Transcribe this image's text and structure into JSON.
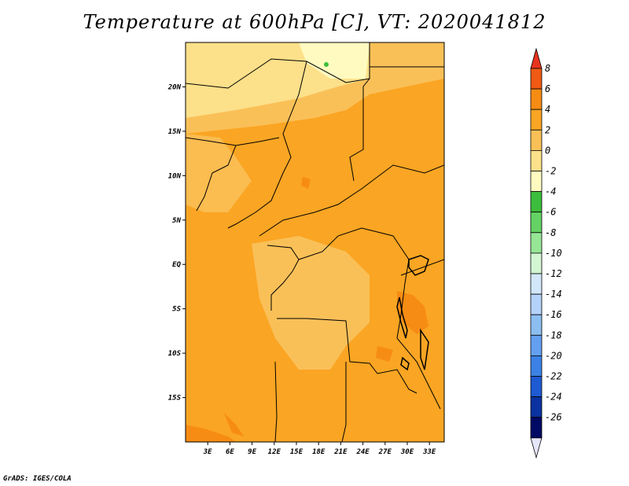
{
  "title": "Temperature at 600hPa [C], VT: 2020041812",
  "credit": "GrADS: IGES/COLA",
  "lat_ticks": [
    {
      "value": 20,
      "label": "20N"
    },
    {
      "value": 15,
      "label": "15N"
    },
    {
      "value": 10,
      "label": "10N"
    },
    {
      "value": 5,
      "label": "5N"
    },
    {
      "value": 0,
      "label": "EQ"
    },
    {
      "value": -5,
      "label": "5S"
    },
    {
      "value": -10,
      "label": "10S"
    },
    {
      "value": -15,
      "label": "15S"
    }
  ],
  "lon_ticks": [
    {
      "value": 3,
      "label": "3E"
    },
    {
      "value": 6,
      "label": "6E"
    },
    {
      "value": 9,
      "label": "9E"
    },
    {
      "value": 12,
      "label": "12E"
    },
    {
      "value": 15,
      "label": "15E"
    },
    {
      "value": 18,
      "label": "18E"
    },
    {
      "value": 21,
      "label": "21E"
    },
    {
      "value": 24,
      "label": "24E"
    },
    {
      "value": 27,
      "label": "27E"
    },
    {
      "value": 30,
      "label": "30E"
    },
    {
      "value": 33,
      "label": "33E"
    }
  ],
  "colorbar": {
    "levels": [
      "8",
      "6",
      "4",
      "2",
      "0",
      "-2",
      "-4",
      "-6",
      "-8",
      "-10",
      "-12",
      "-14",
      "-16",
      "-18",
      "-20",
      "-22",
      "-24",
      "-26"
    ],
    "colors": [
      "#e8321e",
      "#f05a14",
      "#f78c14",
      "#faa523",
      "#fac058",
      "#fde08a",
      "#fffbc0",
      "#3cbe3c",
      "#64d264",
      "#96e696",
      "#d2f5d2",
      "#d2e8fa",
      "#b4d2fa",
      "#8cbef0",
      "#64a0f0",
      "#3c82e6",
      "#1e5ad2",
      "#0a32a0",
      "#000a64",
      "#e6e6fa"
    ]
  },
  "map": {
    "lon_range": [
      0,
      35
    ],
    "lat_range": [
      -20,
      25
    ],
    "regions": [
      {
        "name": "sahara",
        "color": "#fde08a"
      },
      {
        "name": "north-central",
        "color": "#fac058"
      },
      {
        "name": "sahel-band",
        "color": "#faa523"
      },
      {
        "name": "congo",
        "color": "#fac058"
      },
      {
        "name": "east-africa",
        "color": "#faa523"
      },
      {
        "name": "great-lakes-hot",
        "color": "#f78c14"
      }
    ]
  }
}
